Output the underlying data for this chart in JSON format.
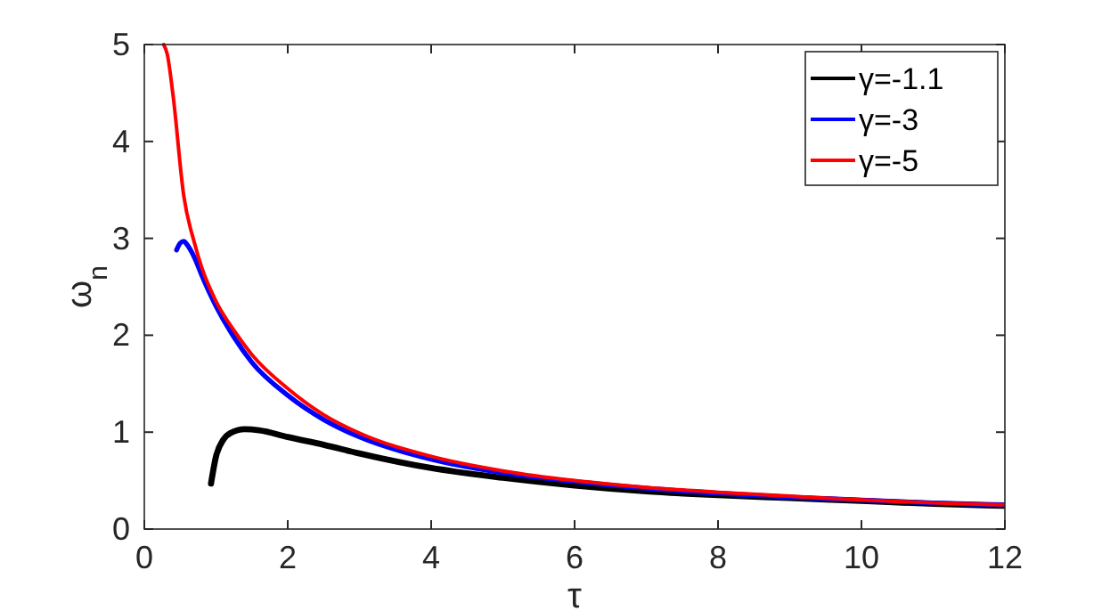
{
  "chart_data": {
    "type": "line",
    "xlabel": "τ",
    "ylabel": "ω$_{n}$",
    "xlim": [
      0,
      12
    ],
    "ylim": [
      0,
      5
    ],
    "xticks": [
      0,
      2,
      4,
      6,
      8,
      10,
      12
    ],
    "yticks": [
      0,
      1,
      2,
      3,
      4,
      5
    ],
    "legend": "top right",
    "grid": false,
    "line_style": "solid",
    "series": [
      {
        "name": "γ=-1.1",
        "color": "#000000",
        "x": [
          0.93,
          1.0,
          1.1,
          1.2,
          1.4,
          1.6,
          2,
          2.5,
          3,
          4,
          5,
          6,
          7,
          8,
          9,
          10,
          11,
          12
        ],
        "values": [
          0.47,
          0.75,
          0.92,
          0.99,
          1.03,
          1.02,
          0.95,
          0.87,
          0.78,
          0.63,
          0.53,
          0.45,
          0.39,
          0.35,
          0.32,
          0.29,
          0.26,
          0.24
        ]
      },
      {
        "name": "γ=-3",
        "color": "#0000ff",
        "x": [
          0.45,
          0.5,
          0.55,
          0.6,
          0.7,
          0.8,
          1.0,
          1.25,
          1.5,
          2,
          2.5,
          3,
          4,
          5,
          6,
          7,
          8,
          9,
          10,
          11,
          12
        ],
        "values": [
          2.88,
          2.95,
          2.97,
          2.93,
          2.8,
          2.62,
          2.3,
          1.98,
          1.72,
          1.38,
          1.13,
          0.95,
          0.72,
          0.58,
          0.49,
          0.42,
          0.37,
          0.33,
          0.3,
          0.27,
          0.25
        ]
      },
      {
        "name": "γ=-5",
        "color": "#ff0000",
        "x": [
          0.27,
          0.32,
          0.4,
          0.55,
          0.7,
          0.8,
          1.0,
          1.25,
          1.5,
          2,
          2.5,
          3,
          4,
          5,
          6,
          7,
          8,
          9,
          10,
          11,
          12
        ],
        "values": [
          5,
          4.9,
          4.48,
          3.44,
          2.95,
          2.7,
          2.35,
          2.05,
          1.8,
          1.45,
          1.18,
          0.99,
          0.75,
          0.6,
          0.5,
          0.43,
          0.38,
          0.34,
          0.3,
          0.27,
          0.25
        ]
      }
    ]
  }
}
